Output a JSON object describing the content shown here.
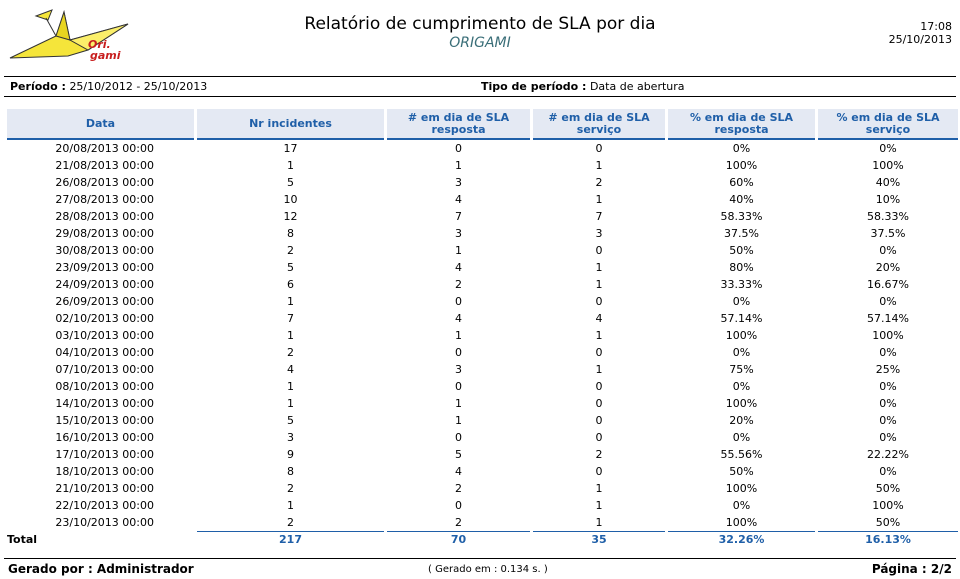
{
  "header": {
    "logo_text_1": "Ori.",
    "logo_text_2": "gami",
    "title": "Relatório de cumprimento de SLA por dia",
    "subtitle": "ORIGAMI",
    "time": "17:08",
    "date": "25/10/2013"
  },
  "filters": {
    "periodo_label": "Período :",
    "periodo_value": "25/10/2012 - 25/10/2013",
    "tipo_label": "Tipo de período :",
    "tipo_value": "Data de abertura"
  },
  "table": {
    "columns": [
      "Data",
      "Nr incidentes",
      "# em dia de SLA resposta",
      "# em dia de SLA serviço",
      "% em dia de SLA resposta",
      "% em dia de SLA serviço"
    ],
    "rows": [
      [
        "20/08/2013 00:00",
        "17",
        "0",
        "0",
        "0%",
        "0%"
      ],
      [
        "21/08/2013 00:00",
        "1",
        "1",
        "1",
        "100%",
        "100%"
      ],
      [
        "26/08/2013 00:00",
        "5",
        "3",
        "2",
        "60%",
        "40%"
      ],
      [
        "27/08/2013 00:00",
        "10",
        "4",
        "1",
        "40%",
        "10%"
      ],
      [
        "28/08/2013 00:00",
        "12",
        "7",
        "7",
        "58.33%",
        "58.33%"
      ],
      [
        "29/08/2013 00:00",
        "8",
        "3",
        "3",
        "37.5%",
        "37.5%"
      ],
      [
        "30/08/2013 00:00",
        "2",
        "1",
        "0",
        "50%",
        "0%"
      ],
      [
        "23/09/2013 00:00",
        "5",
        "4",
        "1",
        "80%",
        "20%"
      ],
      [
        "24/09/2013 00:00",
        "6",
        "2",
        "1",
        "33.33%",
        "16.67%"
      ],
      [
        "26/09/2013 00:00",
        "1",
        "0",
        "0",
        "0%",
        "0%"
      ],
      [
        "02/10/2013 00:00",
        "7",
        "4",
        "4",
        "57.14%",
        "57.14%"
      ],
      [
        "03/10/2013 00:00",
        "1",
        "1",
        "1",
        "100%",
        "100%"
      ],
      [
        "04/10/2013 00:00",
        "2",
        "0",
        "0",
        "0%",
        "0%"
      ],
      [
        "07/10/2013 00:00",
        "4",
        "3",
        "1",
        "75%",
        "25%"
      ],
      [
        "08/10/2013 00:00",
        "1",
        "0",
        "0",
        "0%",
        "0%"
      ],
      [
        "14/10/2013 00:00",
        "1",
        "1",
        "0",
        "100%",
        "0%"
      ],
      [
        "15/10/2013 00:00",
        "5",
        "1",
        "0",
        "20%",
        "0%"
      ],
      [
        "16/10/2013 00:00",
        "3",
        "0",
        "0",
        "0%",
        "0%"
      ],
      [
        "17/10/2013 00:00",
        "9",
        "5",
        "2",
        "55.56%",
        "22.22%"
      ],
      [
        "18/10/2013 00:00",
        "8",
        "4",
        "0",
        "50%",
        "0%"
      ],
      [
        "21/10/2013 00:00",
        "2",
        "2",
        "1",
        "100%",
        "50%"
      ],
      [
        "22/10/2013 00:00",
        "1",
        "0",
        "1",
        "0%",
        "100%"
      ],
      [
        "23/10/2013 00:00",
        "2",
        "2",
        "1",
        "100%",
        "50%"
      ]
    ],
    "total": [
      "Total",
      "217",
      "70",
      "35",
      "32.26%",
      "16.13%"
    ]
  },
  "footer": {
    "gerado_por": "Gerado por : Administrador",
    "gerado_em": "( Gerado em : 0.134 s. )",
    "pagina": "Página : 2/2"
  }
}
